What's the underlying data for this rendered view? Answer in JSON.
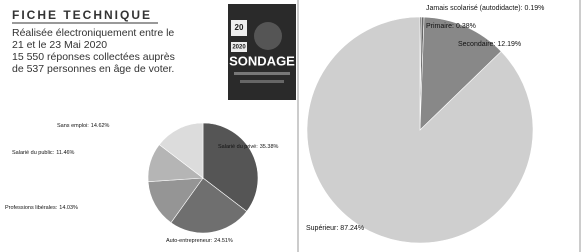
{
  "header": {
    "title": "FICHE TECHNIQUE",
    "lines": [
      "Réalisée électroniquement entre le",
      "21 et le 23 Mai 2020",
      "15 550 réponses collectées auprès",
      "de 537 personnes en âge de voter."
    ]
  },
  "poster": {
    "texts": [
      "20",
      "2020",
      "SONDAGE"
    ]
  },
  "chart_data": [
    {
      "type": "pie",
      "categories": [
        "Salarié du privé:",
        "Auto-entrepreneur:",
        "Professions libérales:",
        "Salarié du public:",
        "Sans emploi:"
      ],
      "values": [
        35.38,
        24.51,
        14.03,
        11.46,
        14.62
      ],
      "value_labels": [
        "35.38%",
        "24.51%",
        "14.03%",
        "11.46%",
        "14.62%"
      ],
      "colors": [
        "#555555",
        "#6f6f6f",
        "#959595",
        "#b5b5b5",
        "#dcdcdc"
      ]
    },
    {
      "type": "pie",
      "categories": [
        "Jamais scolarisé (autodidacte):",
        "Primaire:",
        "Secondaire:",
        "Supérieur:"
      ],
      "values": [
        0.19,
        0.38,
        12.19,
        87.24
      ],
      "value_labels": [
        "0.19%",
        "0.38%",
        "12.19%",
        "87.24%"
      ],
      "colors": [
        "#444444",
        "#666666",
        "#888888",
        "#cfcfcf"
      ]
    }
  ]
}
